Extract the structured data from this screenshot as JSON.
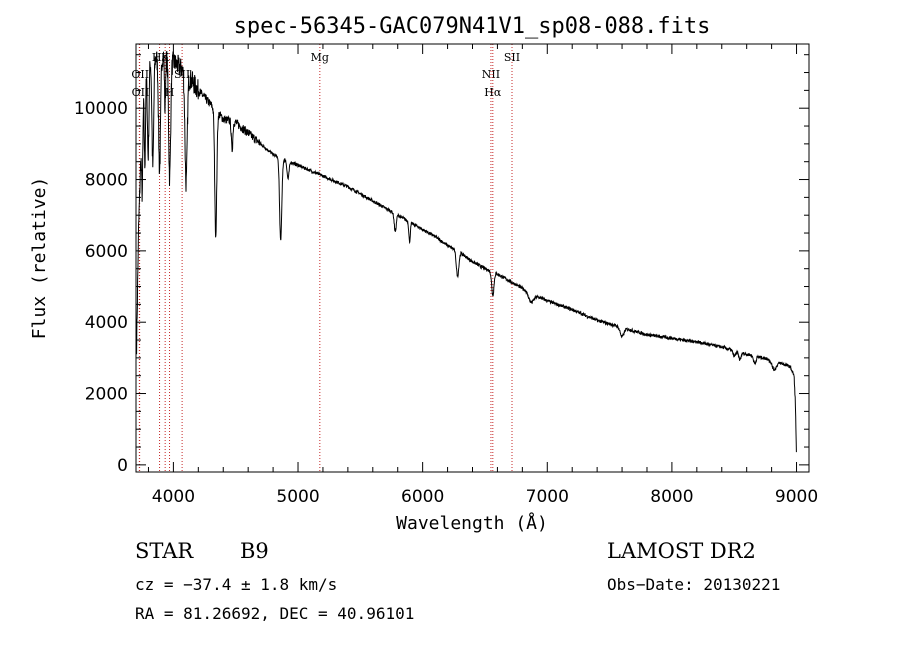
{
  "chart_data": {
    "type": "line",
    "title": "spec-56345-GAC079N41V1_sp08-088.fits",
    "xlabel": "Wavelength (Å)",
    "ylabel": "Flux (relative)",
    "xlim": [
      3700,
      9100
    ],
    "ylim": [
      -200,
      11800
    ],
    "grid": false,
    "x_ticks": [
      4000,
      5000,
      6000,
      7000,
      8000,
      9000
    ],
    "x_tick_labels": [
      "4000",
      "5000",
      "6000",
      "7000",
      "8000",
      "9000"
    ],
    "y_ticks": [
      0,
      2000,
      4000,
      6000,
      8000,
      10000
    ],
    "y_tick_labels": [
      "0",
      "2000",
      "4000",
      "6000",
      "8000",
      "10000"
    ],
    "continuum": [
      [
        3705,
        3400
      ],
      [
        3720,
        6500
      ],
      [
        3740,
        8800
      ],
      [
        3760,
        10500
      ],
      [
        3800,
        11300
      ],
      [
        3900,
        11500
      ],
      [
        4000,
        11300
      ],
      [
        4100,
        11000
      ],
      [
        4200,
        10500
      ],
      [
        4300,
        10100
      ],
      [
        4400,
        9700
      ],
      [
        4500,
        9600
      ],
      [
        4600,
        9300
      ],
      [
        4700,
        9000
      ],
      [
        4800,
        8700
      ],
      [
        4900,
        8550
      ],
      [
        5000,
        8400
      ],
      [
        5100,
        8250
      ],
      [
        5200,
        8100
      ],
      [
        5300,
        7950
      ],
      [
        5400,
        7800
      ],
      [
        5500,
        7600
      ],
      [
        5600,
        7400
      ],
      [
        5700,
        7200
      ],
      [
        5800,
        7000
      ],
      [
        5900,
        6800
      ],
      [
        6000,
        6600
      ],
      [
        6100,
        6400
      ],
      [
        6200,
        6150
      ],
      [
        6300,
        5950
      ],
      [
        6400,
        5700
      ],
      [
        6500,
        5500
      ],
      [
        6600,
        5350
      ],
      [
        6700,
        5150
      ],
      [
        6800,
        4950
      ],
      [
        6900,
        4750
      ],
      [
        7000,
        4600
      ],
      [
        7200,
        4350
      ],
      [
        7400,
        4050
      ],
      [
        7600,
        3850
      ],
      [
        7800,
        3650
      ],
      [
        8000,
        3550
      ],
      [
        8200,
        3450
      ],
      [
        8400,
        3300
      ],
      [
        8600,
        3100
      ],
      [
        8800,
        2950
      ],
      [
        8950,
        2750
      ],
      [
        8980,
        2500
      ],
      [
        8990,
        1800
      ],
      [
        9000,
        200
      ]
    ],
    "absorption_lines": [
      {
        "x": 3750,
        "depth": 2000,
        "width": 5
      },
      {
        "x": 3771,
        "depth": 2300,
        "width": 5
      },
      {
        "x": 3798,
        "depth": 2600,
        "width": 6
      },
      {
        "x": 3835,
        "depth": 3000,
        "width": 7
      },
      {
        "x": 3889,
        "depth": 3200,
        "width": 8
      },
      {
        "x": 3933,
        "depth": 1500,
        "width": 4
      },
      {
        "x": 3970,
        "depth": 3300,
        "width": 8
      },
      {
        "x": 4102,
        "depth": 3100,
        "width": 9
      },
      {
        "x": 4340,
        "depth": 3500,
        "width": 8
      },
      {
        "x": 4471,
        "depth": 800,
        "width": 6
      },
      {
        "x": 4861,
        "depth": 2300,
        "width": 9
      },
      {
        "x": 4920,
        "depth": 500,
        "width": 8
      },
      {
        "x": 5780,
        "depth": 500,
        "width": 8
      },
      {
        "x": 5895,
        "depth": 550,
        "width": 6
      },
      {
        "x": 6280,
        "depth": 700,
        "width": 10
      },
      {
        "x": 6563,
        "depth": 650,
        "width": 9
      },
      {
        "x": 6870,
        "depth": 250,
        "width": 20
      },
      {
        "x": 7600,
        "depth": 250,
        "width": 15
      },
      {
        "x": 8500,
        "depth": 150,
        "width": 10
      },
      {
        "x": 8545,
        "depth": 200,
        "width": 10
      },
      {
        "x": 8665,
        "depth": 200,
        "width": 10
      },
      {
        "x": 8820,
        "depth": 250,
        "width": 18
      }
    ],
    "line_markers": [
      {
        "x": 3727,
        "label": "OII",
        "row": 1,
        "align": "left"
      },
      {
        "x": 3729,
        "label": "OII",
        "row": 2,
        "align": "left"
      },
      {
        "x": 3889,
        "label": "Hε",
        "row": 0,
        "align": "center"
      },
      {
        "x": 3934,
        "label": "K",
        "row": 0,
        "align": "center"
      },
      {
        "x": 3969,
        "label": "H",
        "row": 2,
        "align": "center"
      },
      {
        "x": 4070,
        "label": "SII",
        "row": 1,
        "align": "center"
      },
      {
        "x": 5175,
        "label": "Mg",
        "row": 0,
        "align": "center"
      },
      {
        "x": 6548,
        "label": "NII",
        "row": 1,
        "align": "center"
      },
      {
        "x": 6563,
        "label": "Hα",
        "row": 2,
        "align": "center"
      },
      {
        "x": 6717,
        "label": "SII",
        "row": 0,
        "align": "center"
      }
    ]
  },
  "info": {
    "class_label": "STAR",
    "subclass": "B9",
    "survey": "LAMOST DR2",
    "cz": "cz = −37.4 ± 1.8 km/s",
    "obs_date": "Obs−Date: 20130221",
    "coords": "RA =  81.26692, DEC =  40.96101"
  }
}
